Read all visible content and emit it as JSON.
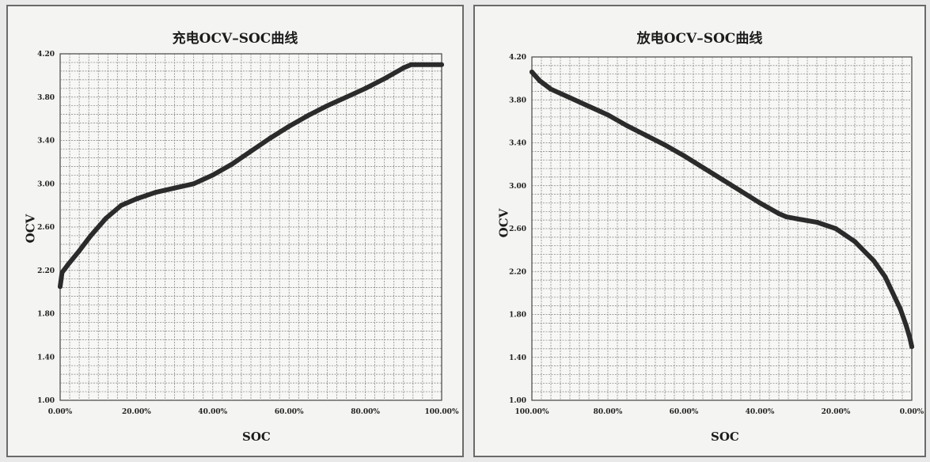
{
  "chart_data": [
    {
      "type": "line",
      "title": "充电OCV–SOC曲线",
      "xlabel": "SOC",
      "ylabel": "OCV",
      "xlim": [
        0,
        100
      ],
      "ylim": [
        1.0,
        4.2
      ],
      "x_reversed": false,
      "grid": true,
      "yticks": [
        "1.00",
        "1.40",
        "1.80",
        "2.20",
        "2.60",
        "3.00",
        "3.40",
        "3.80",
        "4.20"
      ],
      "xticks": [
        "0.00%",
        "20.00%",
        "40.00%",
        "60.00%",
        "80.00%",
        "100.00%"
      ],
      "series": [
        {
          "color": "#2b2b2b",
          "x": [
            0,
            0.5,
            2,
            5,
            8,
            12,
            16,
            20,
            25,
            30,
            35,
            40,
            45,
            50,
            55,
            60,
            65,
            70,
            75,
            80,
            85,
            88,
            90,
            92,
            93,
            95,
            100
          ],
          "y": [
            2.05,
            2.18,
            2.25,
            2.38,
            2.52,
            2.68,
            2.8,
            2.86,
            2.92,
            2.96,
            3.0,
            3.08,
            3.18,
            3.3,
            3.42,
            3.53,
            3.63,
            3.72,
            3.8,
            3.88,
            3.97,
            4.03,
            4.07,
            4.1,
            4.1,
            4.1,
            4.1
          ]
        }
      ]
    },
    {
      "type": "line",
      "title": "放电OCV–SOC曲线",
      "xlabel": "SOC",
      "ylabel": "OCV",
      "xlim": [
        100,
        0
      ],
      "ylim": [
        1.0,
        4.2
      ],
      "x_reversed": true,
      "grid": true,
      "yticks": [
        "1.00",
        "1.40",
        "1.80",
        "2.20",
        "2.60",
        "3.00",
        "3.40",
        "3.80",
        "4.20"
      ],
      "xticks": [
        "100.00%",
        "80.00%",
        "60.00%",
        "40.00%",
        "20.00%",
        "0.00%"
      ],
      "series": [
        {
          "color": "#2b2b2b",
          "x": [
            100,
            98,
            95,
            90,
            85,
            80,
            75,
            70,
            65,
            60,
            55,
            50,
            45,
            40,
            35,
            33,
            30,
            25,
            20,
            15,
            10,
            7,
            5,
            3,
            1.5,
            0.5,
            0
          ],
          "y": [
            4.06,
            3.98,
            3.9,
            3.82,
            3.74,
            3.66,
            3.56,
            3.47,
            3.38,
            3.28,
            3.17,
            3.06,
            2.95,
            2.84,
            2.74,
            2.71,
            2.69,
            2.66,
            2.6,
            2.48,
            2.3,
            2.15,
            2.0,
            1.85,
            1.7,
            1.58,
            1.5
          ]
        }
      ]
    }
  ]
}
